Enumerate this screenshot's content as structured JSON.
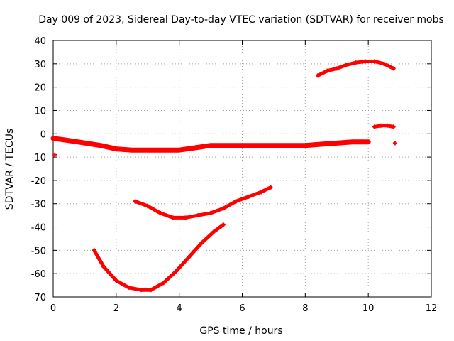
{
  "chart_data": {
    "type": "scatter",
    "title": "Day 009 of 2023, Sidereal Day-to-day VTEC variation (SDTVAR) for receiver mobs",
    "xlabel": "GPS time / hours",
    "ylabel": "SDTVAR / TECUs",
    "xlim": [
      0,
      12
    ],
    "ylim": [
      -70,
      40
    ],
    "xticks": [
      0,
      2,
      4,
      6,
      8,
      10,
      12
    ],
    "yticks": [
      -70,
      -60,
      -50,
      -40,
      -30,
      -20,
      -10,
      0,
      10,
      20,
      30,
      40
    ],
    "grid": true,
    "color": "#ff0000",
    "series": [
      {
        "name": "arc-main-band",
        "x": [
          0,
          0.3,
          0.8,
          1.5,
          2,
          2.5,
          3,
          3.5,
          4,
          4.5,
          5,
          5.5,
          6,
          6.5,
          7,
          7.5,
          8,
          8.5,
          9,
          9.5,
          10
        ],
        "y": [
          -2,
          -2.5,
          -3.5,
          -5,
          -6.5,
          -7,
          -7,
          -7,
          -7,
          -6,
          -5,
          -5,
          -5,
          -5,
          -5,
          -5,
          -5,
          -4.5,
          -4,
          -3.5,
          -3.5
        ]
      },
      {
        "name": "arc-deep-u",
        "x": [
          1.3,
          1.6,
          2,
          2.4,
          2.8,
          3.1,
          3.5,
          3.9,
          4.3,
          4.7,
          5.1,
          5.4
        ],
        "y": [
          -50,
          -57,
          -63,
          -66,
          -67,
          -67,
          -64,
          -59,
          -53,
          -47,
          -42,
          -39
        ]
      },
      {
        "name": "arc-shallow-u",
        "x": [
          2.6,
          3,
          3.4,
          3.8,
          4.2,
          4.6,
          5,
          5.4,
          5.8,
          6.2,
          6.6,
          6.9
        ],
        "y": [
          -29,
          -31,
          -34,
          -36,
          -36,
          -35,
          -34,
          -32,
          -29,
          -27,
          -25,
          -23
        ]
      },
      {
        "name": "arc-upper",
        "x": [
          8.4,
          8.7,
          9,
          9.3,
          9.6,
          9.9,
          10.2,
          10.5,
          10.8
        ],
        "y": [
          25,
          27,
          28,
          29.5,
          30.5,
          31,
          31,
          30,
          28
        ]
      },
      {
        "name": "arc-short",
        "x": [
          10.2,
          10.4,
          10.6,
          10.8
        ],
        "y": [
          3,
          3.5,
          3.5,
          3
        ]
      },
      {
        "name": "outliers",
        "x": [
          0.05,
          10.85
        ],
        "y": [
          -9,
          -4
        ]
      }
    ]
  }
}
